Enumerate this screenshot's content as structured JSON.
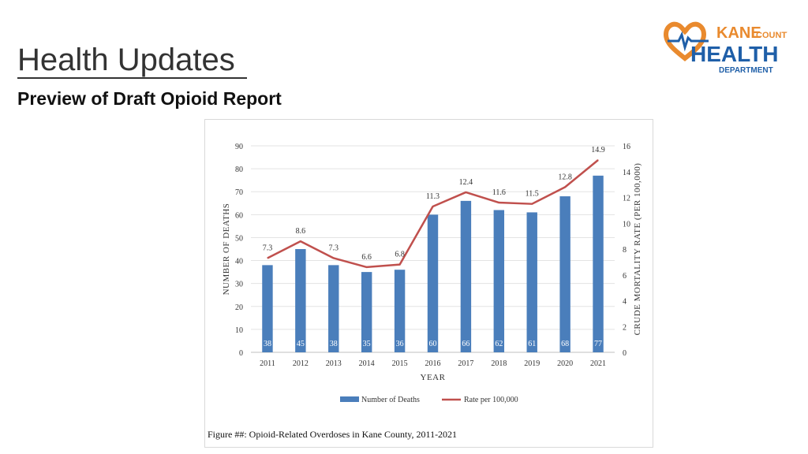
{
  "header": {
    "title": "Health Updates",
    "subtitle": "Preview of Draft Opioid Report"
  },
  "logo": {
    "line1": "KANE",
    "line1b": "COUNTY",
    "line2": "HEALTH",
    "line3": "DEPARTMENT",
    "colors": {
      "orange": "#e98a2e",
      "blue": "#1f5fa8"
    }
  },
  "figure": {
    "caption": "Figure ##: Opioid-Related Overdoses in Kane County, 2011-2021"
  },
  "chart_data": {
    "type": "bar",
    "categories": [
      "2011",
      "2012",
      "2013",
      "2014",
      "2015",
      "2016",
      "2017",
      "2018",
      "2019",
      "2020",
      "2021"
    ],
    "series": [
      {
        "name": "Number of Deaths",
        "type": "bar",
        "axis": "left",
        "color": "#4a7ebb",
        "values": [
          38,
          45,
          38,
          35,
          36,
          60,
          66,
          62,
          61,
          68,
          77
        ]
      },
      {
        "name": "Rate per 100,000",
        "type": "line",
        "axis": "right",
        "color": "#c0504d",
        "values": [
          7.3,
          8.6,
          7.3,
          6.6,
          6.8,
          11.3,
          12.4,
          11.6,
          11.5,
          12.8,
          14.9
        ]
      }
    ],
    "xlabel": "YEAR",
    "ylabel": "NUMBER OF DEATHS",
    "y2label": "CRUDE MORTALITY RATE (PER 100,000)",
    "ylim": [
      0,
      90
    ],
    "y2lim": [
      0,
      16
    ],
    "yticks": [
      0,
      10,
      20,
      30,
      40,
      50,
      60,
      70,
      80,
      90
    ],
    "y2ticks": [
      0,
      2,
      4,
      6,
      8,
      10,
      12,
      14,
      16
    ],
    "grid": true,
    "legend": "bottom"
  }
}
